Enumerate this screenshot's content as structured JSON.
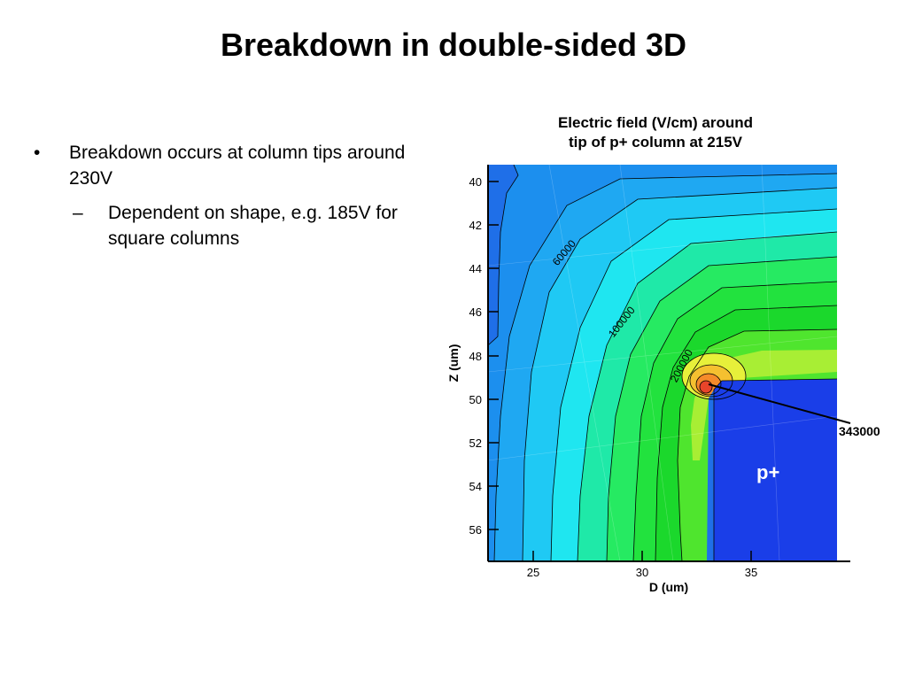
{
  "slide": {
    "title": "Breakdown in double-sided 3D",
    "bullets": [
      {
        "marker": "•",
        "text": "Breakdown occurs at column tips around 230V"
      },
      {
        "marker": "–",
        "text": "Dependent on shape, e.g. 185V for square columns"
      }
    ]
  },
  "figure": {
    "title_line1": "Electric field (V/cm) around",
    "title_line2": "tip of p+ column at 215V",
    "xlabel": "D (um)",
    "ylabel": "Z (um)",
    "contour_labels": [
      "60000",
      "100000",
      "200000"
    ],
    "peak_label": "343000",
    "region_label": "p+"
  },
  "chart_data": {
    "type": "heatmap",
    "title": "Electric field (V/cm) around tip of p+ column at 215V",
    "xlabel": "D (um)",
    "ylabel": "Z (um)",
    "xlim": [
      23,
      39
    ],
    "ylim": [
      57.5,
      39.5
    ],
    "x_ticks": [
      25,
      30,
      35
    ],
    "y_ticks": [
      40,
      42,
      44,
      46,
      48,
      50,
      52,
      54,
      56
    ],
    "contour_levels_labeled": [
      60000,
      100000,
      200000
    ],
    "peak_value": 343000,
    "peak_location": {
      "x": 33.0,
      "y": 49.5
    },
    "region": {
      "name": "p+",
      "x_range": [
        33,
        39
      ],
      "y_range": [
        49.3,
        57.5
      ]
    },
    "colors": {
      "low": "#1f6fe8",
      "mid_low": "#1fb4f3",
      "cyan": "#1fe6f0",
      "green": "#1ee43a",
      "yellow": "#f2f03a",
      "orange": "#f59a2a",
      "red": "#e8442a",
      "pplus": "#1a3ee8"
    }
  }
}
